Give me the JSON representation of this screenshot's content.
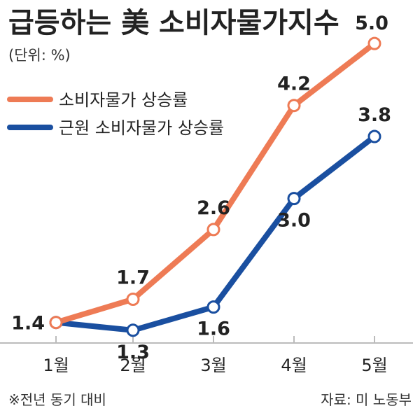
{
  "chart_data": {
    "type": "line",
    "title": "급등하는 美 소비자물가지수",
    "unit_label": "(단위: %)",
    "categories": [
      "1월",
      "2월",
      "3월",
      "4월",
      "5월"
    ],
    "series": [
      {
        "name": "소비자물가 상승률",
        "color": "#EE7B55",
        "values": [
          1.4,
          1.7,
          2.6,
          4.2,
          5.0
        ]
      },
      {
        "name": "근원 소비자물가 상승률",
        "color": "#1A4FA0",
        "values": [
          1.4,
          1.3,
          1.6,
          3.0,
          3.8
        ]
      }
    ],
    "data_labels": [
      {
        "series": 0,
        "index": 0,
        "text": "1.4"
      },
      {
        "series": 0,
        "index": 1,
        "text": "1.7"
      },
      {
        "series": 0,
        "index": 2,
        "text": "2.6"
      },
      {
        "series": 0,
        "index": 3,
        "text": "4.2"
      },
      {
        "series": 0,
        "index": 4,
        "text": "5.0"
      },
      {
        "series": 1,
        "index": 1,
        "text": "1.3"
      },
      {
        "series": 1,
        "index": 2,
        "text": "1.6"
      },
      {
        "series": 1,
        "index": 3,
        "text": "3.0"
      },
      {
        "series": 1,
        "index": 4,
        "text": "3.8"
      }
    ],
    "ylim": [
      1.0,
      5.2
    ],
    "grid": false,
    "legend_position": "top-left",
    "footnote": "※전년 동기 대비",
    "source": "자료: 미 노동부"
  }
}
